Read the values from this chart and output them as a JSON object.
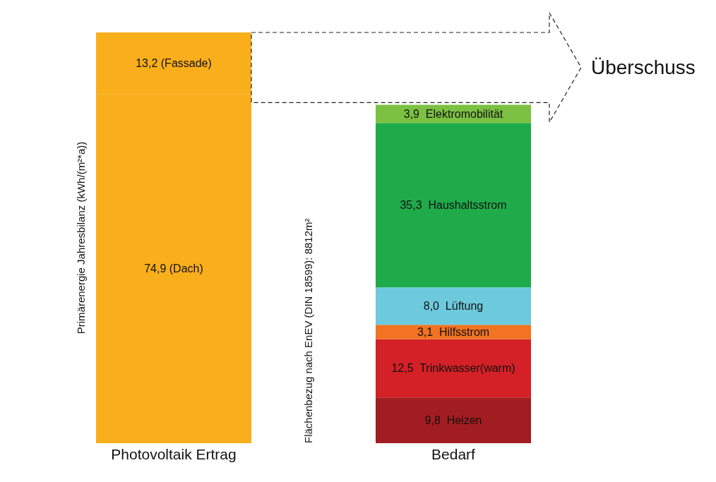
{
  "chart_data": {
    "type": "bar",
    "stacked": true,
    "tick_labels": "x",
    "ylabel": "Primärenergie Jahresbilanz (kWh/(m²*a))",
    "categories": [
      "Photovoltaik Ertrag",
      "Bedarf"
    ],
    "series": [
      {
        "color": "#f9ae1b",
        "values": [
          74.9,
          null
        ],
        "value_labels": [
          "74,9 (Dach)",
          null
        ]
      },
      {
        "color": "#f9ae1b",
        "values": [
          13.2,
          null
        ],
        "value_labels": [
          "13,2 (Fassade)",
          null
        ]
      },
      {
        "color": "#a21d21",
        "values": [
          null,
          9.8
        ],
        "value_labels": [
          null,
          "9,8  Heizen"
        ]
      },
      {
        "color": "#d42027",
        "values": [
          null,
          12.5
        ],
        "value_labels": [
          null,
          "12,5  Trinkwasser(warm)"
        ]
      },
      {
        "color": "#f27321",
        "values": [
          null,
          3.1
        ],
        "value_labels": [
          null,
          "3,1  Hilfsstrom"
        ]
      },
      {
        "color": "#6dcadd",
        "values": [
          null,
          8.0
        ],
        "value_labels": [
          null,
          "8,0  Lüftung"
        ]
      },
      {
        "color": "#1fab4a",
        "values": [
          null,
          35.3
        ],
        "value_labels": [
          null,
          "35,3  Haushaltsstrom"
        ]
      },
      {
        "color": "#7cc142",
        "values": [
          null,
          3.9
        ],
        "value_labels": [
          null,
          "3,9  Elektromobilität"
        ]
      }
    ],
    "annotations": [
      "Flächenbezug nach EnEV (DIN 18599): 8812m²",
      "Überschuss"
    ]
  }
}
